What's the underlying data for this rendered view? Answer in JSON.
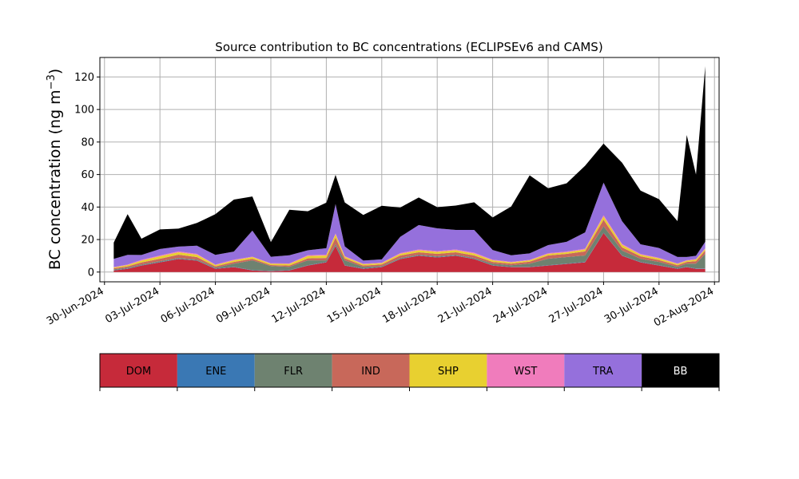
{
  "chart_data": {
    "type": "area",
    "title": "Source contribution to BC concentrations (ECLIPSEv6 and CAMS)",
    "ylabel": "BC concentration (ng m",
    "ylabel_sup": "−3",
    "ylabel_close": ")",
    "xlabel": "",
    "ylim": [
      -6,
      132
    ],
    "xlim": [
      "2024-06-29T18:00",
      "2024-08-02T06:00"
    ],
    "grid": true,
    "stacked": true,
    "x_ticks": [
      "30-Jun-2024",
      "03-Jul-2024",
      "06-Jul-2024",
      "09-Jul-2024",
      "12-Jul-2024",
      "15-Jul-2024",
      "18-Jul-2024",
      "21-Jul-2024",
      "24-Jul-2024",
      "27-Jul-2024",
      "30-Jul-2024",
      "02-Aug-2024"
    ],
    "y_ticks": [
      "0",
      "20",
      "40",
      "60",
      "80",
      "100",
      "120"
    ],
    "x_dates": [
      "2024-06-30T12:00",
      "2024-07-01T06:00",
      "2024-07-02T00:00",
      "2024-07-03T00:00",
      "2024-07-04T00:00",
      "2024-07-05T00:00",
      "2024-07-06T00:00",
      "2024-07-07T00:00",
      "2024-07-08T00:00",
      "2024-07-09T00:00",
      "2024-07-10T00:00",
      "2024-07-11T00:00",
      "2024-07-12T00:00",
      "2024-07-12T12:00",
      "2024-07-13T00:00",
      "2024-07-14T00:00",
      "2024-07-15T00:00",
      "2024-07-16T00:00",
      "2024-07-17T00:00",
      "2024-07-18T00:00",
      "2024-07-19T00:00",
      "2024-07-20T00:00",
      "2024-07-21T00:00",
      "2024-07-22T00:00",
      "2024-07-23T00:00",
      "2024-07-24T00:00",
      "2024-07-25T00:00",
      "2024-07-26T00:00",
      "2024-07-27T00:00",
      "2024-07-28T00:00",
      "2024-07-29T00:00",
      "2024-07-30T00:00",
      "2024-07-31T00:00",
      "2024-07-31T12:00",
      "2024-08-01T00:00",
      "2024-08-01T12:00"
    ],
    "series": [
      {
        "name": "DOM",
        "color": "#c62a3a",
        "values": [
          1,
          2,
          4,
          6,
          8,
          7,
          2,
          3,
          1,
          0.5,
          1,
          4,
          6,
          16,
          4,
          2,
          3,
          8,
          10,
          9,
          10,
          8,
          4,
          3,
          3,
          4,
          5,
          6,
          24,
          10,
          6,
          4,
          2,
          3,
          2,
          2
        ]
      },
      {
        "name": "ENE",
        "color": "#3a78b4",
        "values": [
          0.2,
          0.2,
          0.2,
          0.2,
          0.2,
          0.2,
          0.2,
          0.2,
          0.2,
          0.2,
          0.2,
          0.2,
          0.2,
          0.2,
          0.2,
          0.2,
          0.2,
          0.2,
          0.2,
          0.2,
          0.2,
          0.2,
          0.2,
          0.2,
          0.2,
          0.2,
          0.2,
          0.2,
          0.2,
          0.2,
          0.2,
          0.2,
          0.2,
          0.2,
          0.2,
          0.2
        ]
      },
      {
        "name": "FLR",
        "color": "#6e8270",
        "values": [
          0.5,
          0.5,
          0.5,
          0.5,
          0.5,
          0.5,
          0.5,
          2,
          6,
          3,
          2,
          3,
          1,
          1,
          3,
          1,
          0.5,
          0.5,
          0.5,
          0.5,
          0.5,
          0.5,
          1,
          1,
          2,
          4,
          4,
          4,
          4,
          3,
          2,
          2,
          1,
          2,
          3,
          9
        ]
      },
      {
        "name": "IND",
        "color": "#c8685a",
        "values": [
          0.6,
          0.8,
          1.2,
          1.5,
          2,
          1.5,
          0.8,
          1,
          1,
          0.6,
          0.8,
          1.2,
          1.5,
          4,
          1.2,
          0.8,
          1,
          1.5,
          1.5,
          1.5,
          1.5,
          1.5,
          1,
          1,
          1.2,
          2,
          2,
          2.5,
          4,
          2,
          1.5,
          1.2,
          1,
          1,
          1.5,
          2
        ]
      },
      {
        "name": "SHP",
        "color": "#e8d030",
        "values": [
          0.5,
          0.8,
          1.2,
          1.5,
          1.5,
          1.5,
          0.8,
          1,
          1,
          0.8,
          1,
          1.5,
          1.5,
          2,
          1,
          0.8,
          0.8,
          1,
          1.2,
          1.2,
          1.2,
          1.2,
          1,
          0.8,
          0.8,
          1,
          1,
          1.2,
          2,
          1.5,
          1,
          1,
          0.8,
          0.8,
          1,
          1
        ]
      },
      {
        "name": "WST",
        "color": "#f07cbc",
        "values": [
          0.3,
          0.3,
          0.4,
          0.5,
          0.5,
          0.5,
          0.3,
          0.4,
          0.3,
          0.3,
          0.3,
          0.5,
          0.5,
          0.6,
          0.4,
          0.3,
          0.3,
          0.5,
          0.5,
          0.5,
          0.5,
          0.5,
          0.4,
          0.3,
          0.3,
          0.4,
          0.4,
          0.5,
          0.8,
          0.6,
          0.4,
          0.4,
          0.3,
          0.3,
          0.3,
          0.4
        ]
      },
      {
        "name": "TRA",
        "color": "#9570dc",
        "values": [
          5,
          6,
          3,
          4,
          3,
          5,
          6,
          5,
          16,
          4,
          5,
          3,
          4,
          18,
          6,
          2,
          2,
          10,
          15,
          14,
          12,
          14,
          6,
          4,
          4,
          5,
          6,
          10,
          20,
          14,
          6,
          6,
          4,
          2,
          2,
          4
        ]
      },
      {
        "name": "BB",
        "color": "#000000",
        "values": [
          10,
          25,
          10,
          12,
          11,
          14,
          25,
          32,
          21,
          9,
          28,
          24,
          28,
          18,
          27,
          28,
          33,
          18,
          17,
          13,
          15,
          17,
          20,
          30,
          48,
          35,
          36,
          41,
          24,
          36,
          33,
          30,
          22,
          75,
          50,
          108
        ]
      }
    ],
    "legend": [
      {
        "label": "DOM",
        "color": "#c62a3a",
        "text_color": "#000000"
      },
      {
        "label": "ENE",
        "color": "#3a78b4",
        "text_color": "#000000"
      },
      {
        "label": "FLR",
        "color": "#6e8270",
        "text_color": "#000000"
      },
      {
        "label": "IND",
        "color": "#c8685a",
        "text_color": "#000000"
      },
      {
        "label": "SHP",
        "color": "#e8d030",
        "text_color": "#000000"
      },
      {
        "label": "WST",
        "color": "#f07cbc",
        "text_color": "#000000"
      },
      {
        "label": "TRA",
        "color": "#9570dc",
        "text_color": "#000000"
      },
      {
        "label": "BB",
        "color": "#000000",
        "text_color": "#ffffff"
      }
    ],
    "legend_placement": "bottom"
  }
}
